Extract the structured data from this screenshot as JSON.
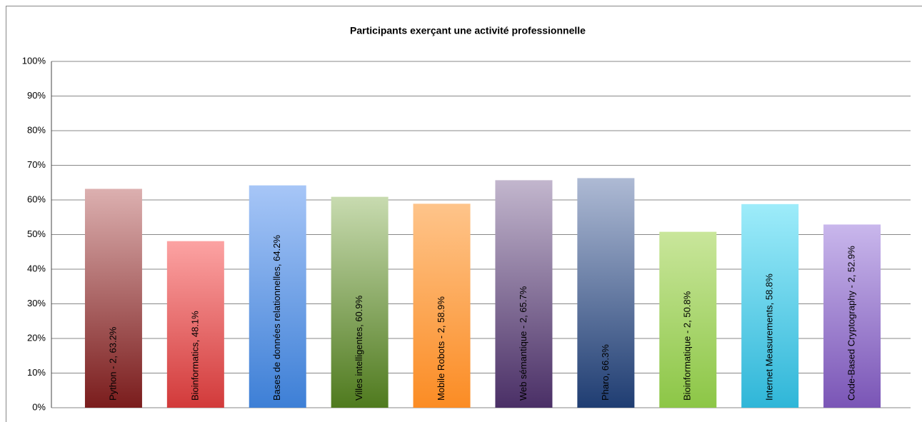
{
  "chart_data": {
    "type": "bar",
    "title": "Participants exerçant une activité professionnelle",
    "values": [
      63.2,
      48.1,
      64.2,
      60.9,
      58.9,
      65.7,
      66.3,
      50.8,
      58.8,
      52.9
    ],
    "value_labels": [
      "Python - 2, 63.2%",
      "Bioinformatics, 48.1%",
      "Bases de données relationnelles, 64.2%",
      "Villes intelligentes, 60.9%",
      "Mobile Robots - 2, 58.9%",
      "Web sémantique - 2, 65.7%",
      "Pharo, 66.3%",
      "Bioinformatique - 2, 50.8%",
      "Internet Measurements, 58.8%",
      "Code-Based Cryptography - 2, 52.9%"
    ],
    "gradients": [
      [
        "#dcb0b0",
        "#7a1c1c"
      ],
      [
        "#fca3a3",
        "#d23a3a"
      ],
      [
        "#a7c6f7",
        "#3d7fd6"
      ],
      [
        "#c8dbb0",
        "#4f7a1e"
      ],
      [
        "#fec48a",
        "#fb8c24"
      ],
      [
        "#c2b6cd",
        "#4a2f66"
      ],
      [
        "#aebad4",
        "#1f3d72"
      ],
      [
        "#c9e69b",
        "#8cc646"
      ],
      [
        "#9eecfa",
        "#2fb6d8"
      ],
      [
        "#c9b7ec",
        "#7a55b6"
      ]
    ],
    "ylim": [
      0,
      100
    ],
    "yticks": [
      {
        "value": 0,
        "label": "0%"
      },
      {
        "value": 10,
        "label": "10%"
      },
      {
        "value": 20,
        "label": "20%"
      },
      {
        "value": 30,
        "label": "30%"
      },
      {
        "value": 40,
        "label": "40%"
      },
      {
        "value": 50,
        "label": "50%"
      },
      {
        "value": 60,
        "label": "60%"
      },
      {
        "value": 70,
        "label": "70%"
      },
      {
        "value": 80,
        "label": "80%"
      },
      {
        "value": 90,
        "label": "90%"
      },
      {
        "value": 100,
        "label": "100%"
      }
    ],
    "grid": true
  }
}
